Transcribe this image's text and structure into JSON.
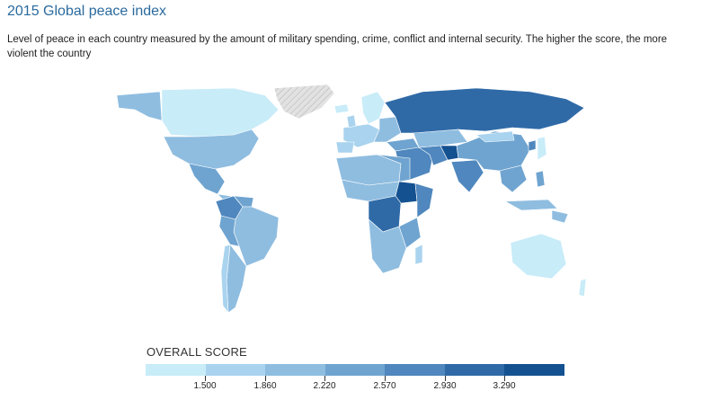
{
  "title": "2015 Global peace index",
  "subtitle": "Level of peace in each country measured by the amount of military spending, crime, conflict and internal security. The higher the score, the more violent the country",
  "legend": {
    "title": "OVERALL SCORE",
    "colors": [
      "#c8ecf8",
      "#a9d3ee",
      "#8fbde0",
      "#6fa4d0",
      "#4f87be",
      "#2f6aa7",
      "#145190"
    ],
    "ticks": [
      "1.500",
      "1.860",
      "2.220",
      "2.570",
      "2.930",
      "3.290"
    ]
  },
  "map": {
    "colors": {
      "no_data": "#d9d9d9",
      "ocean": "#ffffff",
      "border": "#ffffff"
    }
  }
}
